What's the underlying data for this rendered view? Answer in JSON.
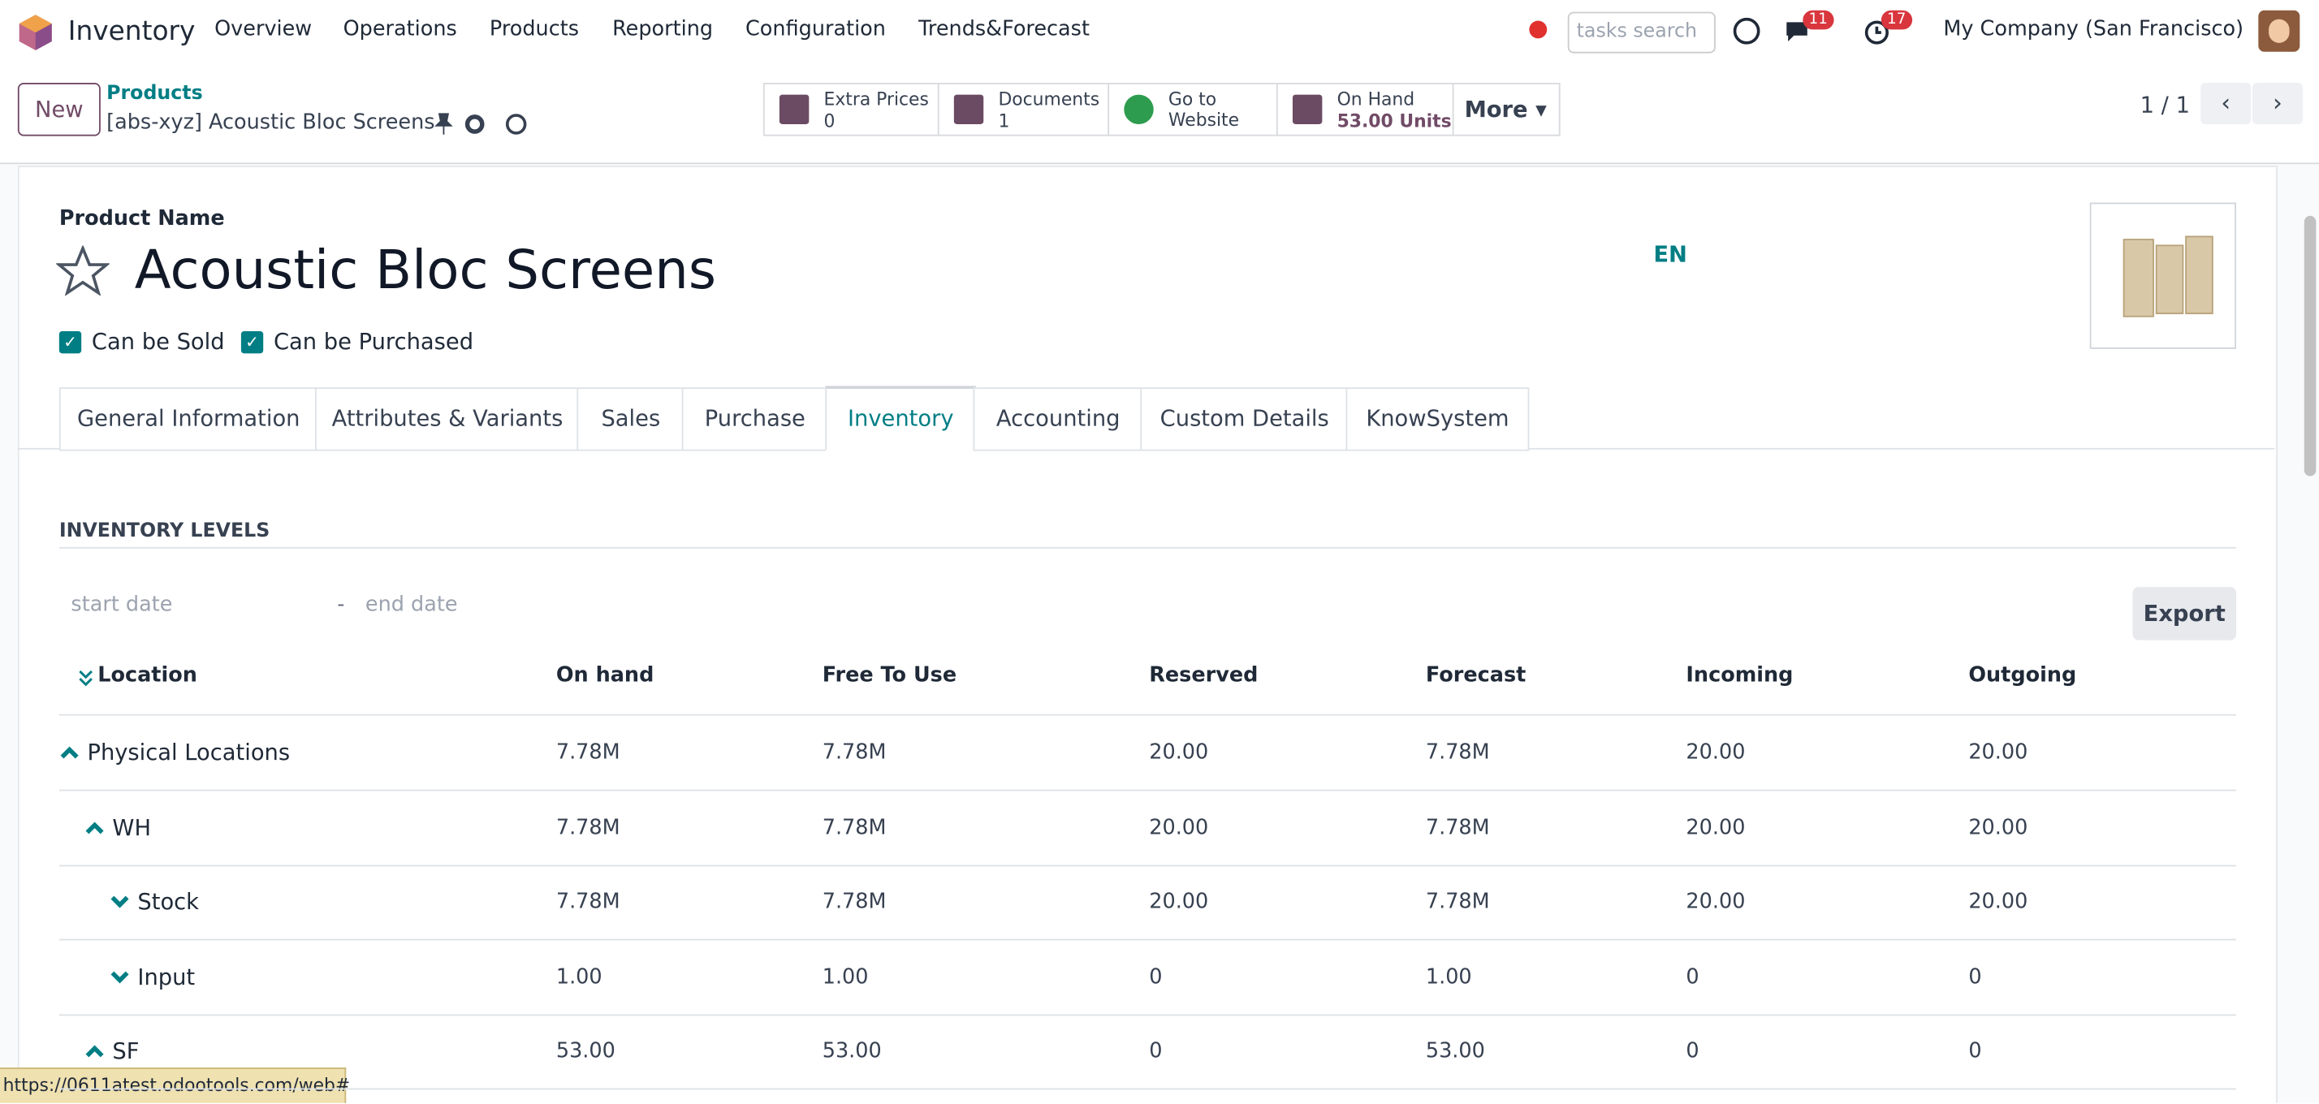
{
  "navbar": {
    "app": "Inventory",
    "menu": [
      "Overview",
      "Operations",
      "Products",
      "Reporting",
      "Configuration",
      "Trends&Forecast"
    ],
    "search_placeholder": "tasks search",
    "messages_badge": "11",
    "activities_badge": "17",
    "company": "My Company (San Francisco)"
  },
  "control_panel": {
    "new_button": "New",
    "breadcrumb": "Products",
    "record": "[abs-xyz] Acoustic Bloc Screens",
    "smart_buttons": [
      {
        "label": "Extra Prices",
        "value": "0"
      },
      {
        "label": "Documents",
        "value": "1"
      },
      {
        "label": "Go to Website"
      },
      {
        "label": "On Hand",
        "value": "53.00 Units"
      }
    ],
    "more": "More",
    "pager": "1 / 1"
  },
  "form": {
    "name_label": "Product Name",
    "name": "Acoustic Bloc Screens",
    "lang": "EN",
    "checkboxes": [
      "Can be Sold",
      "Can be Purchased"
    ],
    "tabs": [
      "General Information",
      "Attributes & Variants",
      "Sales",
      "Purchase",
      "Inventory",
      "Accounting",
      "Custom Details",
      "KnowSystem"
    ],
    "active_tab": 4
  },
  "inventory": {
    "section_title": "INVENTORY LEVELS",
    "start_date": "start date",
    "separator": "-",
    "end_date": "end date",
    "export": "Export",
    "columns": [
      "Location",
      "On hand",
      "Free To Use",
      "Reserved",
      "Forecast",
      "Incoming",
      "Outgoing"
    ],
    "rows": [
      {
        "location": "Physical Locations",
        "level": 0,
        "expanded": true,
        "cells": [
          "7.78M",
          "7.78M",
          "20.00",
          "7.78M",
          "20.00",
          "20.00"
        ]
      },
      {
        "location": "WH",
        "level": 1,
        "expanded": true,
        "cells": [
          "7.78M",
          "7.78M",
          "20.00",
          "7.78M",
          "20.00",
          "20.00"
        ]
      },
      {
        "location": "Stock",
        "level": 2,
        "expanded": false,
        "cells": [
          "7.78M",
          "7.78M",
          "20.00",
          "7.78M",
          "20.00",
          "20.00"
        ]
      },
      {
        "location": "Input",
        "level": 2,
        "expanded": false,
        "cells": [
          "1.00",
          "1.00",
          "0",
          "1.00",
          "0",
          "0"
        ]
      },
      {
        "location": "SF",
        "level": 1,
        "expanded": true,
        "cells": [
          "53.00",
          "53.00",
          "0",
          "53.00",
          "0",
          "0"
        ]
      }
    ]
  },
  "status_url": "https://0611atest.odootools.com/web#"
}
